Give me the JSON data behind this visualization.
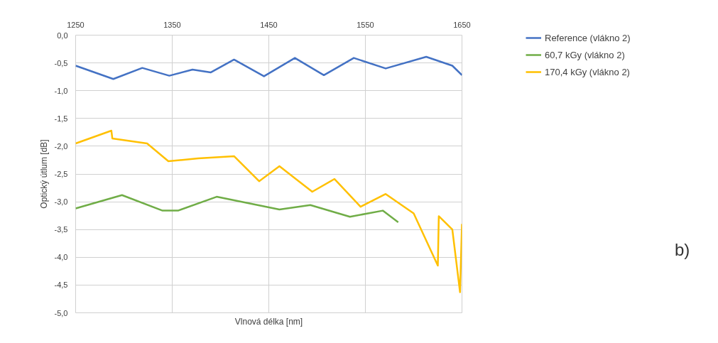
{
  "chart_data": {
    "type": "line",
    "xlabel": "Vlnová délka [nm]",
    "ylabel": "Optický útlum [dB]",
    "annotations": [
      "b)"
    ],
    "xlim": [
      1250,
      1650
    ],
    "xticks": [
      1250,
      1350,
      1450,
      1550,
      1650
    ],
    "ylim": [
      -5,
      0
    ],
    "yticks": [
      {
        "value": 0,
        "label": "0,0"
      },
      {
        "value": -0.5,
        "label": "-0,5"
      },
      {
        "value": -1,
        "label": "-1,0"
      },
      {
        "value": -1.5,
        "label": "-1,5"
      },
      {
        "value": -2,
        "label": "-2,0"
      },
      {
        "value": -2.5,
        "label": "-2,5"
      },
      {
        "value": -3,
        "label": "-3,0"
      },
      {
        "value": -3.5,
        "label": "-3,5"
      },
      {
        "value": -4,
        "label": "-4,0"
      },
      {
        "value": -4.5,
        "label": "-4,5"
      },
      {
        "value": -5,
        "label": "-5,0"
      }
    ],
    "grid": true,
    "legend": "right",
    "series": [
      {
        "name": "Reference (vlákno 2)",
        "color": "#4472c4",
        "x": [
          1250,
          1289,
          1319,
          1347,
          1371,
          1390,
          1414,
          1445,
          1477,
          1507,
          1538,
          1571,
          1613,
          1640,
          1650
        ],
        "values": [
          -0.55,
          -0.79,
          -0.59,
          -0.73,
          -0.62,
          -0.67,
          -0.44,
          -0.74,
          -0.41,
          -0.72,
          -0.41,
          -0.6,
          -0.39,
          -0.55,
          -0.72
        ]
      },
      {
        "name": "60,7 kGy (vlákno 2)",
        "color": "#70ad47",
        "x": [
          1250,
          1298,
          1340,
          1356,
          1396,
          1461,
          1493,
          1534,
          1568,
          1584
        ],
        "values": [
          -3.12,
          -2.88,
          -3.16,
          -3.16,
          -2.91,
          -3.14,
          -3.06,
          -3.27,
          -3.16,
          -3.37
        ]
      },
      {
        "name": "170,4 kGy (vlákno 2)",
        "color": "#ffc000",
        "x": [
          1250,
          1287,
          1288,
          1324,
          1346,
          1377,
          1414,
          1440,
          1461,
          1495,
          1518,
          1545,
          1571,
          1600,
          1625,
          1626,
          1640,
          1648,
          1650
        ],
        "values": [
          -1.95,
          -1.72,
          -1.86,
          -1.95,
          -2.27,
          -2.22,
          -2.18,
          -2.63,
          -2.36,
          -2.82,
          -2.59,
          -3.09,
          -2.86,
          -3.21,
          -4.15,
          -3.26,
          -3.5,
          -4.63,
          -3.4
        ]
      }
    ]
  }
}
